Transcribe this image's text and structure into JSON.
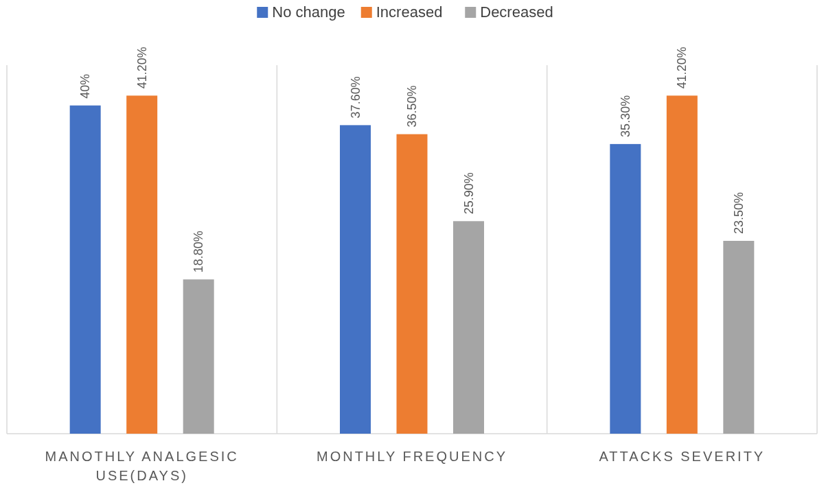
{
  "chart_data": {
    "type": "bar",
    "categories": [
      "MANOTHLY ANALGESIC USE(DAYS)",
      "MONTHLY FREQUENCY",
      "ATTACKS SEVERITY"
    ],
    "series": [
      {
        "name": "No change",
        "color": "#4472c4",
        "values": [
          40,
          37.6,
          35.3
        ],
        "value_labels": [
          "40%",
          "37.60%",
          "35.30%"
        ]
      },
      {
        "name": "Increased",
        "color": "#ed7d31",
        "values": [
          41.2,
          36.5,
          41.2
        ],
        "value_labels": [
          "41.20%",
          "36.50%",
          "41.20%"
        ]
      },
      {
        "name": "Decreased",
        "color": "#a5a5a5",
        "values": [
          18.8,
          25.9,
          23.5
        ],
        "value_labels": [
          "18.80%",
          "25.90%",
          "23.50%"
        ]
      }
    ],
    "legend": "top",
    "grid": "x"
  }
}
